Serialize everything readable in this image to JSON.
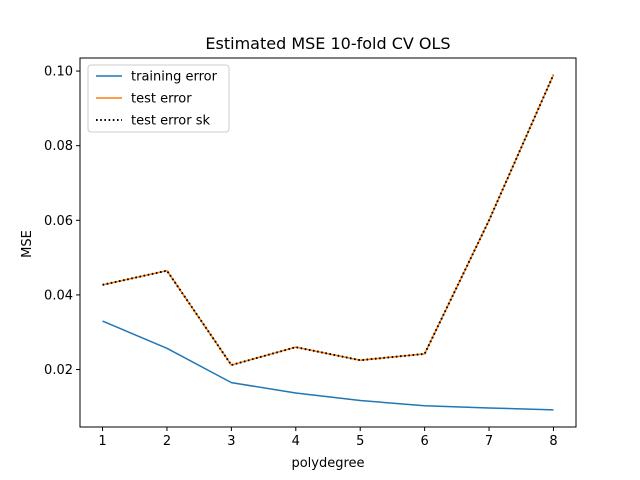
{
  "chart_data": {
    "type": "line",
    "title": "Estimated MSE 10-fold CV OLS",
    "xlabel": "polydegree",
    "ylabel": "MSE",
    "x": [
      1,
      2,
      3,
      4,
      5,
      6,
      7,
      8
    ],
    "xticks": [
      "1",
      "2",
      "3",
      "4",
      "5",
      "6",
      "7",
      "8"
    ],
    "yticks": [
      "0.02",
      "0.04",
      "0.06",
      "0.08",
      "0.10"
    ],
    "ytick_values": [
      0.02,
      0.04,
      0.06,
      0.08,
      0.1
    ],
    "xlim": [
      0.65,
      8.35
    ],
    "ylim": [
      0.0046,
      0.1035
    ],
    "grid": false,
    "legend_position": "top-left",
    "series": [
      {
        "name": "training error",
        "values": [
          0.033,
          0.0257,
          0.0165,
          0.0137,
          0.0117,
          0.0103,
          0.0097,
          0.0092
        ],
        "color": "#1f77b4",
        "style": "solid"
      },
      {
        "name": "test error",
        "values": [
          0.0427,
          0.0465,
          0.0212,
          0.026,
          0.0225,
          0.0242,
          0.06,
          0.099
        ],
        "color": "#ff7f0e",
        "style": "solid"
      },
      {
        "name": "test error sk",
        "values": [
          0.0427,
          0.0465,
          0.0212,
          0.026,
          0.0225,
          0.0242,
          0.06,
          0.099
        ],
        "color": "#000000",
        "style": "dotted"
      }
    ]
  }
}
